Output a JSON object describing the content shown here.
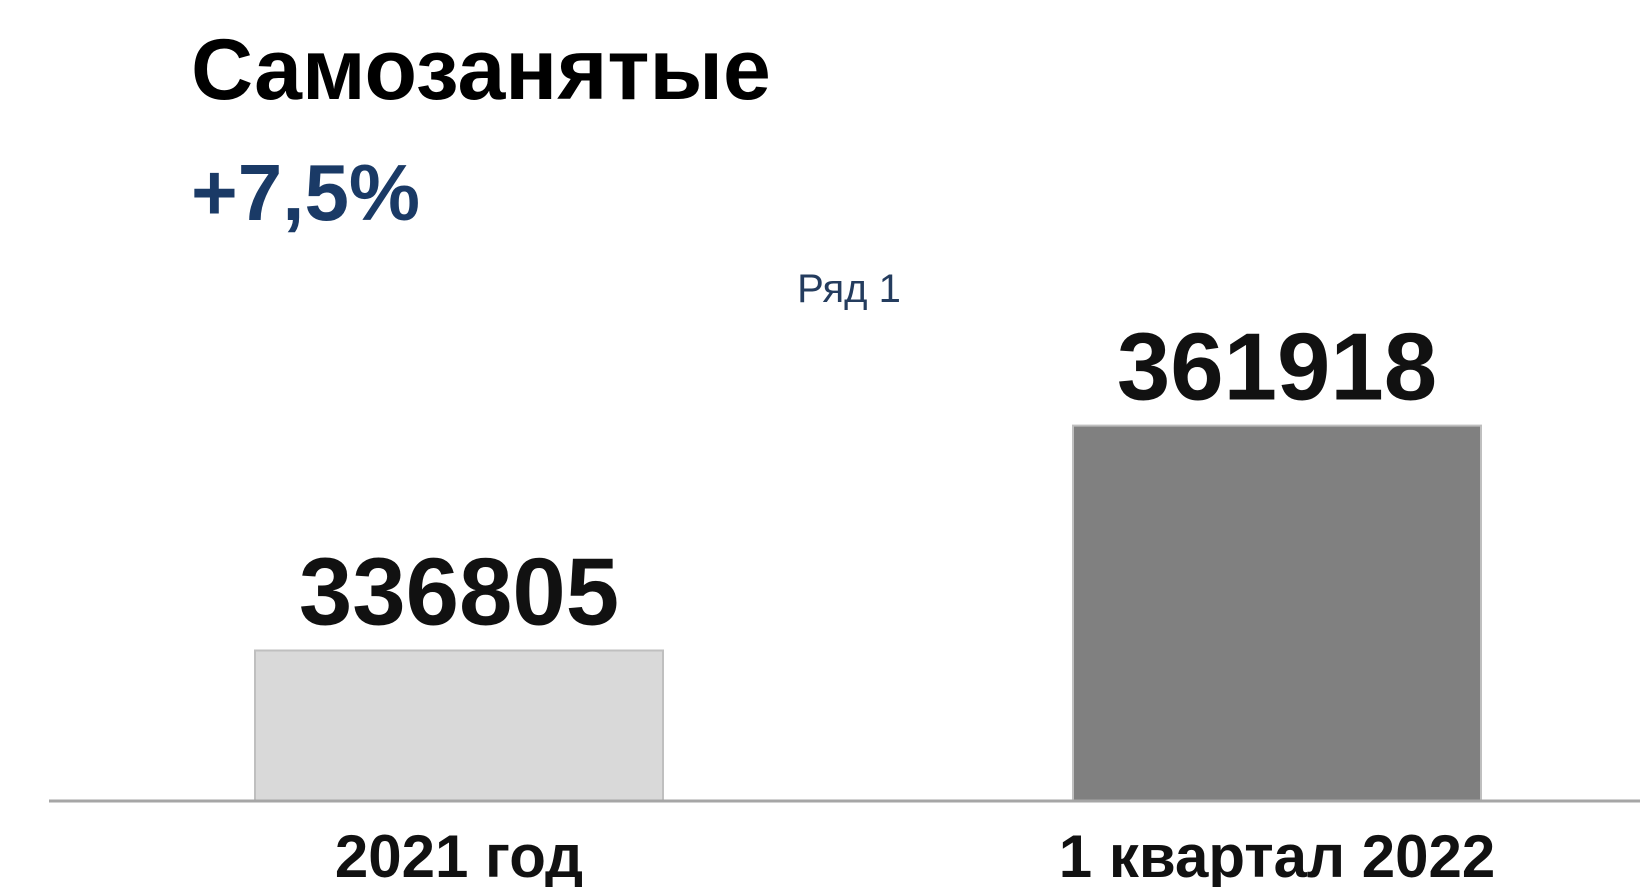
{
  "chart_data": {
    "type": "bar",
    "title": "Самозанятые",
    "subtitle": "+7,5%",
    "categories": [
      "2021 год",
      "1 квартал 2022"
    ],
    "series": [
      {
        "name": "Ряд 1",
        "colors": [
          "#d9d9d9",
          "#808080"
        ],
        "values": [
          336805,
          361918
        ]
      }
    ],
    "ylim": [
      320000,
      365000
    ]
  }
}
